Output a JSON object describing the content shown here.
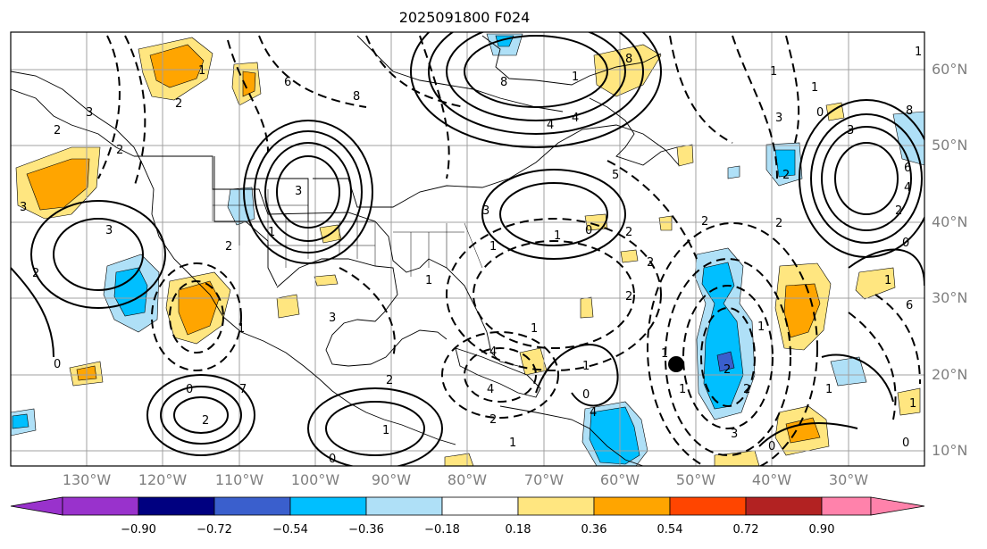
{
  "title": "2025091800 F024",
  "lon_labels": [
    "130°W",
    "120°W",
    "110°W",
    "100°W",
    "90°W",
    "80°W",
    "70°W",
    "60°W",
    "50°W",
    "40°W",
    "30°W"
  ],
  "lat_labels": [
    "60°N",
    "50°N",
    "40°N",
    "30°N",
    "20°N",
    "10°N"
  ],
  "colorbar": {
    "colors": [
      "#9932cc",
      "#000080",
      "#3a5fcd",
      "#00bfff",
      "#afe0f7",
      "#ffffff",
      "#ffe680",
      "#ffa500",
      "#ff4500",
      "#b22222",
      "#ff82ab"
    ],
    "ticks": [
      "−0.90",
      "−0.72",
      "−0.54",
      "−0.36",
      "−0.18",
      "0.18",
      "0.36",
      "0.54",
      "0.72",
      "0.90"
    ]
  },
  "contour_labels": [
    "3",
    "2",
    "2",
    "8",
    "6",
    "4",
    "1",
    "3",
    "0",
    "2",
    "8",
    "5",
    "4",
    "3",
    "2",
    "7",
    "3",
    "2",
    "1",
    "1",
    "2",
    "1",
    "4",
    "0",
    "1",
    "3",
    "4",
    "8",
    "2",
    "1",
    "3",
    "2",
    "6",
    "3",
    "2",
    "1",
    "4",
    "3",
    "2",
    "1",
    "1",
    "2",
    "4",
    "2",
    "1",
    "0",
    "1",
    "1",
    "2",
    "1",
    "0",
    "0",
    "1",
    "1",
    "2",
    "0",
    "0",
    "1",
    "2",
    "3",
    "2",
    "1",
    "1",
    "1",
    "0",
    "2",
    "1",
    "0",
    "6",
    "8"
  ],
  "legend_font": "DejaVu Sans"
}
